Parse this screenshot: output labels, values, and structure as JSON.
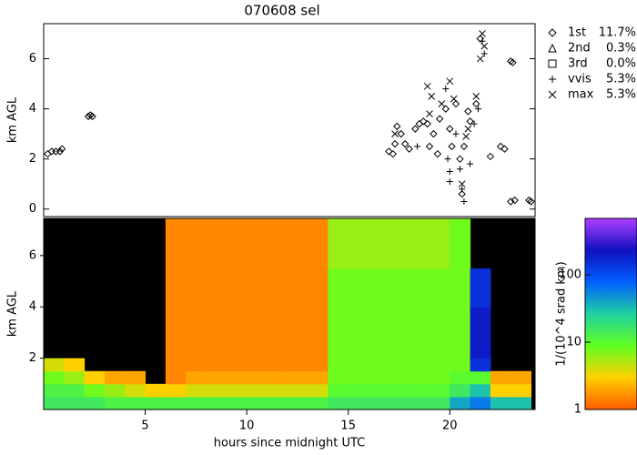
{
  "chart_data": [
    {
      "type": "scatter",
      "title": "070608 sel",
      "y_label": "km AGL",
      "xlim": [
        0,
        24.2
      ],
      "ylim": [
        -0.3,
        7.4
      ],
      "yticks": [
        0,
        2,
        4,
        6
      ],
      "color": "#000000",
      "legend_position": "outside right",
      "series": [
        {
          "name": "1st",
          "marker": "diamond",
          "share": 11.7,
          "share_label": "11.7%",
          "x": [
            0.2,
            0.4,
            0.6,
            0.8,
            0.9,
            2.2,
            2.3,
            2.4,
            17,
            17.2,
            17.3,
            17.4,
            17.6,
            17.8,
            18,
            18.3,
            18.5,
            18.7,
            18.9,
            19,
            19.2,
            19.4,
            19.5,
            19.8,
            20,
            20.1,
            20.3,
            20.5,
            20.6,
            20.7,
            20.9,
            21,
            21.3,
            21.5,
            22,
            22.5,
            22.7,
            23,
            23.1,
            23,
            23.2,
            23.9,
            24
          ],
          "y": [
            2.2,
            2.3,
            2.3,
            2.3,
            2.4,
            3.7,
            3.75,
            3.7,
            2.3,
            2.2,
            2.6,
            3.3,
            3.0,
            2.6,
            2.4,
            3.2,
            3.4,
            3.5,
            3.4,
            2.5,
            3.0,
            2.2,
            3.6,
            4.0,
            3.2,
            2.5,
            4.2,
            2.0,
            0.6,
            2.5,
            3.9,
            3.5,
            4.2,
            6.8,
            2.1,
            2.5,
            2.4,
            5.9,
            5.85,
            0.3,
            0.35,
            0.35,
            0.3
          ]
        },
        {
          "name": "2nd",
          "marker": "triangle",
          "share": 0.3,
          "share_label": "0.3%",
          "x": [],
          "y": []
        },
        {
          "name": "3rd",
          "marker": "square",
          "share": 0.0,
          "share_label": "0.0%",
          "x": [],
          "y": []
        },
        {
          "name": "vvis",
          "marker": "plus",
          "share": 5.3,
          "share_label": "5.3%",
          "x": [
            19.8,
            20,
            20,
            19.9,
            20.3,
            20.6,
            20.7,
            21.2,
            21.4,
            21.6,
            21.7,
            20.5,
            18.4,
            21
          ],
          "y": [
            4.8,
            1.5,
            1.1,
            2.0,
            3.0,
            0.8,
            0.3,
            3.4,
            4.0,
            6.7,
            6.2,
            1.6,
            2.5,
            1.8
          ]
        },
        {
          "name": "max",
          "marker": "cross",
          "share": 5.3,
          "share_label": "5.3%",
          "x": [
            18.9,
            19.1,
            19.6,
            20,
            20.2,
            20.9,
            21.3,
            21.6,
            21.7,
            21.5,
            20.6,
            17.3,
            19,
            20.8
          ],
          "y": [
            4.9,
            4.5,
            4.2,
            5.1,
            4.4,
            3.2,
            4.5,
            7.0,
            6.5,
            6.0,
            1.0,
            3.0,
            3.8,
            2.9
          ]
        }
      ]
    },
    {
      "type": "heatmap",
      "y_label": "km AGL",
      "x_label": "hours since midnight UTC",
      "xlim": [
        0,
        24.2
      ],
      "xticks": [
        5,
        10,
        15,
        20
      ],
      "ylim": [
        0,
        7.45
      ],
      "yticks": [
        2,
        4,
        6
      ],
      "x_edges": [
        0,
        1,
        2,
        3,
        4,
        5,
        6,
        7,
        8,
        9,
        10,
        11,
        12,
        13,
        14,
        15,
        16,
        17,
        18,
        19,
        20,
        21,
        22,
        23,
        24
      ],
      "y_edges": [
        0,
        0.5,
        1,
        1.5,
        2,
        2.5,
        4,
        5.5,
        7.45
      ],
      "z": [
        [
          15,
          12,
          8,
          4,
          null,
          null,
          null,
          null
        ],
        [
          15,
          12,
          6,
          3,
          null,
          null,
          null,
          null
        ],
        [
          15,
          8,
          3,
          null,
          null,
          null,
          null,
          null
        ],
        [
          12,
          6,
          2,
          null,
          null,
          null,
          null,
          null
        ],
        [
          12,
          4,
          2,
          null,
          null,
          null,
          null,
          null
        ],
        [
          12,
          3,
          null,
          null,
          null,
          null,
          null,
          null
        ],
        [
          12,
          3,
          1.5,
          1.5,
          1.5,
          1.5,
          1.5,
          1.5
        ],
        [
          12,
          4,
          2,
          1.5,
          1.5,
          1.5,
          1.5,
          1.5
        ],
        [
          12,
          4,
          2,
          1.5,
          1.5,
          1.5,
          1.5,
          1.5
        ],
        [
          12,
          4,
          2,
          1.5,
          1.5,
          1.5,
          1.5,
          1.5
        ],
        [
          12,
          4,
          2,
          1.5,
          1.5,
          1.5,
          1.5,
          1.5
        ],
        [
          12,
          4,
          2,
          1.5,
          1.5,
          1.5,
          1.5,
          1.5
        ],
        [
          12,
          4,
          2,
          1.5,
          1.5,
          1.5,
          1.5,
          1.5
        ],
        [
          12,
          4,
          2,
          1.5,
          1.5,
          1.5,
          1.5,
          1.5
        ],
        [
          15,
          10,
          8,
          8,
          8,
          8,
          8,
          6
        ],
        [
          15,
          10,
          8,
          8,
          8,
          8,
          8,
          6
        ],
        [
          15,
          10,
          8,
          8,
          8,
          8,
          8,
          6
        ],
        [
          15,
          10,
          8,
          8,
          8,
          8,
          8,
          6
        ],
        [
          15,
          10,
          8,
          8,
          8,
          8,
          8,
          6
        ],
        [
          15,
          10,
          8,
          8,
          8,
          8,
          8,
          6
        ],
        [
          40,
          15,
          10,
          8,
          8,
          8,
          8,
          8
        ],
        [
          60,
          30,
          10,
          150,
          200,
          200,
          150,
          null
        ],
        [
          30,
          3,
          2,
          null,
          null,
          null,
          null,
          null
        ],
        [
          30,
          3,
          2,
          null,
          null,
          null,
          null,
          null
        ]
      ],
      "colorbar": {
        "label": "1/(10^4 srad km)",
        "log": true,
        "zlim": [
          1,
          690
        ],
        "ticks": [
          1,
          10,
          100
        ],
        "colormap": [
          "#ff5a00",
          "#ffd000",
          "#60ff20",
          "#20d0a0",
          "#0060ff",
          "#1010c0",
          "#b040ff"
        ]
      }
    }
  ]
}
